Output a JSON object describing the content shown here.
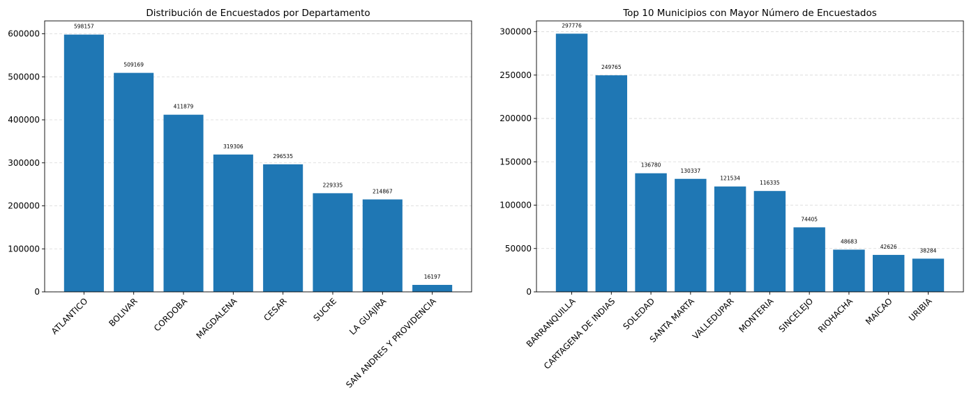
{
  "chart_data": [
    {
      "type": "bar",
      "title": "Distribución de Encuestados por Departamento",
      "categories": [
        "ATLANTICO",
        "BOLIVAR",
        "CORDOBA",
        "MAGDALENA",
        "CESAR",
        "SUCRE",
        "LA GUAJIRA",
        "SAN ANDRES Y PROVIDENCIA"
      ],
      "values": [
        598157,
        509169,
        411879,
        319306,
        296535,
        229335,
        214867,
        16197
      ],
      "ylim": [
        0,
        630000
      ],
      "yticks": [
        0,
        100000,
        200000,
        300000,
        400000,
        500000,
        600000
      ],
      "grid": "y-dashed",
      "color": "#1f77b4"
    },
    {
      "type": "bar",
      "title": "Top 10 Municipios con Mayor Número de Encuestados",
      "categories": [
        "BARRANQUILLA",
        "CARTAGENA DE INDIAS",
        "SOLEDAD",
        "SANTA MARTA",
        "VALLEDUPAR",
        "MONTERIA",
        "SINCELEJO",
        "RIOHACHA",
        "MAICAO",
        "URIBIA"
      ],
      "values": [
        297776,
        249765,
        136780,
        130337,
        121534,
        116335,
        74405,
        48683,
        42626,
        38284
      ],
      "ylim": [
        0,
        312500
      ],
      "yticks": [
        0,
        50000,
        100000,
        150000,
        200000,
        250000,
        300000
      ],
      "grid": "y-dashed",
      "color": "#1f77b4"
    }
  ]
}
